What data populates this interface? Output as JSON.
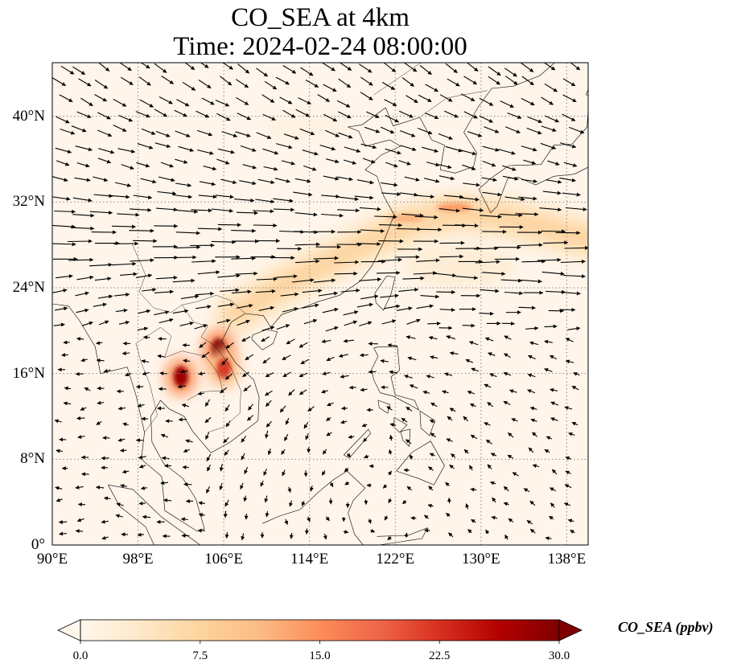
{
  "title_line1": "CO_SEA at 4km",
  "title_line2": "Time: 2024-02-24 08:00:00",
  "map": {
    "extent": {
      "lon_min": 90,
      "lon_max": 140,
      "lat_min": 0,
      "lat_max": 45
    },
    "gridlines": "dotted",
    "background_color": "#fff5eb",
    "coastline_color": "#000000",
    "vector_color": "#000000",
    "lat_ticks": [
      "0°",
      "8°N",
      "16°N",
      "24°N",
      "32°N",
      "40°N"
    ],
    "lat_tick_values": [
      0,
      8,
      16,
      24,
      32,
      40
    ],
    "lon_ticks": [
      "90°E",
      "98°E",
      "106°E",
      "114°E",
      "122°E",
      "130°E",
      "138°E"
    ],
    "lon_tick_values": [
      90,
      98,
      106,
      114,
      122,
      130,
      138
    ],
    "hotspots": [
      {
        "lon": 105.5,
        "lat": 18.3,
        "value": 30
      },
      {
        "lon": 102.0,
        "lat": 15.7,
        "value": 28
      },
      {
        "lon": 106.0,
        "lat": 16.5,
        "value": 22
      },
      {
        "lon": 127.5,
        "lat": 31.5,
        "value": 14
      },
      {
        "lon": 123.0,
        "lat": 30.5,
        "value": 12
      }
    ],
    "plume_band": [
      [
        107,
        21.5
      ],
      [
        112,
        24.5
      ],
      [
        116,
        26.5
      ],
      [
        120,
        28.5
      ],
      [
        124,
        30.2
      ],
      [
        128,
        31.0
      ],
      [
        132,
        30.6
      ],
      [
        136,
        29.6
      ],
      [
        140,
        28.5
      ]
    ]
  },
  "colorbar": {
    "label": "CO_SEA (ppbv)",
    "ticks": [
      "0.0",
      "7.5",
      "15.0",
      "22.5",
      "30.0"
    ],
    "tick_values": [
      0,
      7.5,
      15,
      22.5,
      30
    ],
    "min": 0,
    "max": 30,
    "colormap": "OrRd",
    "stops": [
      "#fff7ec",
      "#fee8c8",
      "#fdd49e",
      "#fdbb84",
      "#fc8d59",
      "#ef6548",
      "#d7301f",
      "#b30000",
      "#7f0000"
    ]
  }
}
